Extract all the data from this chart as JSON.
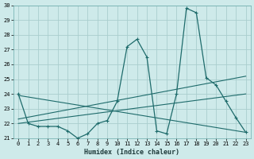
{
  "xlabel": "Humidex (Indice chaleur)",
  "bg_color": "#ceeaea",
  "line_color": "#1e6b6b",
  "grid_color": "#aacece",
  "xlim": [
    -0.5,
    23.5
  ],
  "ylim": [
    21,
    30
  ],
  "yticks": [
    21,
    22,
    23,
    24,
    25,
    26,
    27,
    28,
    29,
    30
  ],
  "xticks": [
    0,
    1,
    2,
    3,
    4,
    5,
    6,
    7,
    8,
    9,
    10,
    11,
    12,
    13,
    14,
    15,
    16,
    17,
    18,
    19,
    20,
    21,
    22,
    23
  ],
  "series1_x": [
    0,
    1,
    2,
    3,
    4,
    5,
    6,
    7,
    8,
    9,
    10,
    11,
    12,
    13,
    14,
    15,
    16,
    17,
    18,
    19,
    20,
    21,
    22,
    23
  ],
  "series1_y": [
    24,
    22,
    21.8,
    21.8,
    21.8,
    21.5,
    21.0,
    21.3,
    22.0,
    22.2,
    23.5,
    27.2,
    27.7,
    26.5,
    21.5,
    21.3,
    24.0,
    29.8,
    29.5,
    25.1,
    24.6,
    23.5,
    22.4,
    21.4
  ],
  "trend1_x": [
    0,
    23
  ],
  "trend1_y": [
    22.0,
    24.0
  ],
  "trend2_x": [
    0,
    23
  ],
  "trend2_y": [
    22.3,
    25.2
  ],
  "trend3_x": [
    0,
    23
  ],
  "trend3_y": [
    23.9,
    21.4
  ]
}
